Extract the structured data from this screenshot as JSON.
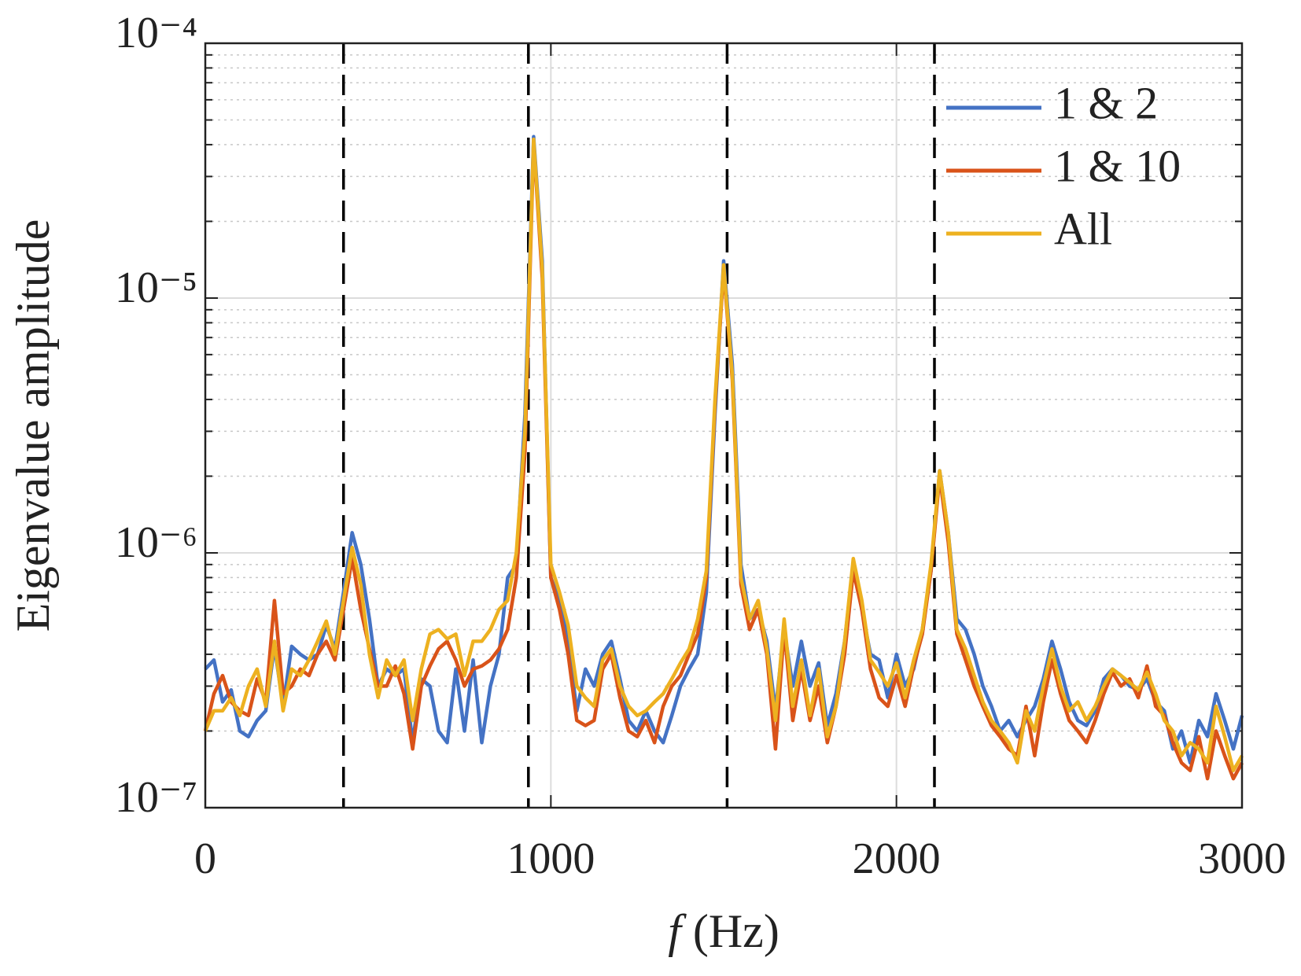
{
  "chart_data": {
    "type": "line",
    "xlabel": "f (Hz)",
    "ylabel": "Eigenvalue amplitude",
    "log_y": true,
    "grid": true,
    "legend": "upper right",
    "x": [
      0,
      25,
      50,
      75,
      100,
      125,
      150,
      175,
      200,
      225,
      250,
      275,
      300,
      325,
      350,
      375,
      400,
      425,
      450,
      475,
      500,
      525,
      550,
      575,
      600,
      625,
      650,
      675,
      700,
      725,
      750,
      775,
      800,
      825,
      850,
      875,
      900,
      925,
      950,
      975,
      1000,
      1025,
      1050,
      1075,
      1100,
      1125,
      1150,
      1175,
      1200,
      1225,
      1250,
      1275,
      1300,
      1325,
      1350,
      1375,
      1400,
      1425,
      1450,
      1475,
      1500,
      1525,
      1550,
      1575,
      1600,
      1625,
      1650,
      1675,
      1700,
      1725,
      1750,
      1775,
      1800,
      1825,
      1850,
      1875,
      1900,
      1925,
      1950,
      1975,
      2000,
      2025,
      2050,
      2075,
      2100,
      2125,
      2150,
      2175,
      2200,
      2225,
      2250,
      2275,
      2300,
      2325,
      2350,
      2375,
      2400,
      2425,
      2450,
      2475,
      2500,
      2525,
      2550,
      2575,
      2600,
      2625,
      2650,
      2675,
      2700,
      2725,
      2750,
      2775,
      2800,
      2825,
      2850,
      2875,
      2900,
      2925,
      2950,
      2975,
      3000
    ],
    "series": [
      {
        "name": "1 & 2",
        "color": "#4472c4",
        "values": [
          3.5e-07,
          3.8e-07,
          2.6e-07,
          2.9e-07,
          2e-07,
          1.9e-07,
          2.2e-07,
          2.4e-07,
          4.3e-07,
          2.5e-07,
          4.3e-07,
          4e-07,
          3.8e-07,
          4e-07,
          5.2e-07,
          4.2e-07,
          7e-07,
          1.2e-06,
          9e-07,
          5.5e-07,
          3e-07,
          3.5e-07,
          3.3e-07,
          3.5e-07,
          1.8e-07,
          3.2e-07,
          3e-07,
          2e-07,
          1.8e-07,
          3.5e-07,
          2e-07,
          3.8e-07,
          1.8e-07,
          3e-07,
          4e-07,
          8e-07,
          9e-07,
          3.5e-06,
          4.3e-05,
          1.4e-05,
          8e-07,
          6.5e-07,
          4.5e-07,
          2.4e-07,
          3.5e-07,
          3e-07,
          4e-07,
          4.5e-07,
          3.2e-07,
          2.2e-07,
          2e-07,
          2.4e-07,
          2e-07,
          1.8e-07,
          2.3e-07,
          3e-07,
          3.5e-07,
          4e-07,
          7e-07,
          3.5e-06,
          1.4e-05,
          5.5e-06,
          9e-07,
          5.5e-07,
          6e-07,
          4.5e-07,
          2.4e-07,
          5e-07,
          3e-07,
          4.5e-07,
          3e-07,
          3.7e-07,
          2.1e-07,
          2.8e-07,
          4.5e-07,
          9e-07,
          6e-07,
          4e-07,
          3.8e-07,
          2.7e-07,
          4e-07,
          3e-07,
          3.5e-07,
          5e-07,
          8.5e-07,
          2.1e-06,
          1.2e-06,
          5.5e-07,
          5e-07,
          4e-07,
          3e-07,
          2.5e-07,
          2e-07,
          2.2e-07,
          1.9e-07,
          2.2e-07,
          2.5e-07,
          3.2e-07,
          4.5e-07,
          3.5e-07,
          2.6e-07,
          2.2e-07,
          2.1e-07,
          2.4e-07,
          3.2e-07,
          3.5e-07,
          3.3e-07,
          3e-07,
          2.9e-07,
          3.2e-07,
          2.6e-07,
          2.4e-07,
          1.7e-07,
          2e-07,
          1.5e-07,
          2.2e-07,
          1.9e-07,
          2.8e-07,
          2.2e-07,
          1.7e-07,
          2.3e-07
        ]
      },
      {
        "name": "1 & 10",
        "color": "#d95319",
        "values": [
          2e-07,
          2.8e-07,
          3.3e-07,
          2.6e-07,
          2.4e-07,
          2.3e-07,
          3.2e-07,
          2.6e-07,
          6.5e-07,
          2.8e-07,
          3e-07,
          3.5e-07,
          3.3e-07,
          4e-07,
          4.5e-07,
          3.8e-07,
          6e-07,
          9.5e-07,
          6e-07,
          4.2e-07,
          3e-07,
          3e-07,
          3.6e-07,
          2.8e-07,
          1.7e-07,
          3e-07,
          3.6e-07,
          4.2e-07,
          4.5e-07,
          3.8e-07,
          3e-07,
          3.5e-07,
          3.6e-07,
          3.8e-07,
          4.2e-07,
          5e-07,
          8e-07,
          2.5e-06,
          4.1e-05,
          1.2e-05,
          8e-07,
          6e-07,
          4e-07,
          2.2e-07,
          2.1e-07,
          2.2e-07,
          3.5e-07,
          4e-07,
          2.7e-07,
          2e-07,
          1.9e-07,
          2.2e-07,
          1.8e-07,
          2.5e-07,
          3e-07,
          3.3e-07,
          4e-07,
          4.8e-07,
          8e-07,
          3.8e-06,
          1.3e-05,
          4.8e-06,
          7.5e-07,
          5e-07,
          6e-07,
          4e-07,
          1.7e-07,
          5e-07,
          2.2e-07,
          3.5e-07,
          2.2e-07,
          3e-07,
          1.8e-07,
          2.5e-07,
          4e-07,
          8.5e-07,
          6e-07,
          3.5e-07,
          2.7e-07,
          2.5e-07,
          3.3e-07,
          2.5e-07,
          3.6e-07,
          4.8e-07,
          8.5e-07,
          2e-06,
          1.1e-06,
          4.8e-07,
          3.8e-07,
          3e-07,
          2.5e-07,
          2.1e-07,
          1.9e-07,
          1.7e-07,
          1.6e-07,
          2.5e-07,
          1.6e-07,
          2.6e-07,
          3.8e-07,
          2.8e-07,
          2.2e-07,
          2e-07,
          1.8e-07,
          2.2e-07,
          2.8e-07,
          3.4e-07,
          3e-07,
          3.2e-07,
          2.7e-07,
          3.6e-07,
          2.5e-07,
          2.3e-07,
          1.8e-07,
          1.5e-07,
          1.4e-07,
          1.9e-07,
          1.3e-07,
          2e-07,
          1.6e-07,
          1.3e-07,
          1.5e-07
        ]
      },
      {
        "name": "All",
        "color": "#edb120",
        "values": [
          2e-07,
          2.4e-07,
          2.4e-07,
          2.7e-07,
          2.3e-07,
          3e-07,
          3.5e-07,
          2.5e-07,
          4.5e-07,
          2.4e-07,
          3.5e-07,
          3.3e-07,
          3.8e-07,
          4.5e-07,
          5.4e-07,
          4e-07,
          6.5e-07,
          1.05e-06,
          7.5e-07,
          4e-07,
          2.7e-07,
          3.8e-07,
          3.3e-07,
          3.8e-07,
          2.2e-07,
          3.5e-07,
          4.8e-07,
          5e-07,
          4.6e-07,
          4.8e-07,
          3.3e-07,
          4.5e-07,
          4.5e-07,
          5e-07,
          6e-07,
          6.5e-07,
          1e-06,
          3e-06,
          4.2e-05,
          1.3e-05,
          9e-07,
          7e-07,
          5.2e-07,
          3e-07,
          2.7e-07,
          2.5e-07,
          3.8e-07,
          4.2e-07,
          3e-07,
          2.5e-07,
          2.3e-07,
          2.4e-07,
          2.6e-07,
          2.8e-07,
          3.2e-07,
          3.7e-07,
          4.2e-07,
          5.5e-07,
          8.5e-07,
          4e-06,
          1.35e-05,
          5e-06,
          8e-07,
          5.5e-07,
          6.5e-07,
          4.2e-07,
          2.2e-07,
          5.5e-07,
          2.5e-07,
          3.8e-07,
          2.3e-07,
          3.5e-07,
          1.9e-07,
          2.5e-07,
          4.5e-07,
          9.5e-07,
          6.5e-07,
          3.8e-07,
          3.4e-07,
          3e-07,
          3.7e-07,
          2.7e-07,
          3.8e-07,
          5e-07,
          9e-07,
          2.1e-06,
          1.2e-06,
          5e-07,
          4.2e-07,
          3.3e-07,
          2.6e-07,
          2.2e-07,
          2e-07,
          1.8e-07,
          1.5e-07,
          2.4e-07,
          2e-07,
          3e-07,
          4.2e-07,
          3e-07,
          2.4e-07,
          2.6e-07,
          2.2e-07,
          2.5e-07,
          3e-07,
          3.5e-07,
          3.3e-07,
          3.1e-07,
          2.9e-07,
          3.4e-07,
          2.8e-07,
          2.2e-07,
          2e-07,
          1.6e-07,
          1.8e-07,
          1.7e-07,
          1.5e-07,
          2.5e-07,
          1.9e-07,
          1.4e-07,
          1.6e-07
        ]
      }
    ],
    "vlines": [
      400,
      935,
      1510,
      2110
    ],
    "xlim": [
      0,
      3000
    ],
    "xticks": [
      0,
      1000,
      2000,
      3000
    ],
    "ylim": [
      1e-07,
      0.0001
    ],
    "yticks": [
      {
        "value": 1e-07,
        "label": "10⁻⁷"
      },
      {
        "value": 1e-06,
        "label": "10⁻⁶"
      },
      {
        "value": 1e-05,
        "label": "10⁻⁵"
      },
      {
        "value": 0.0001,
        "label": "10⁻⁴"
      }
    ]
  }
}
